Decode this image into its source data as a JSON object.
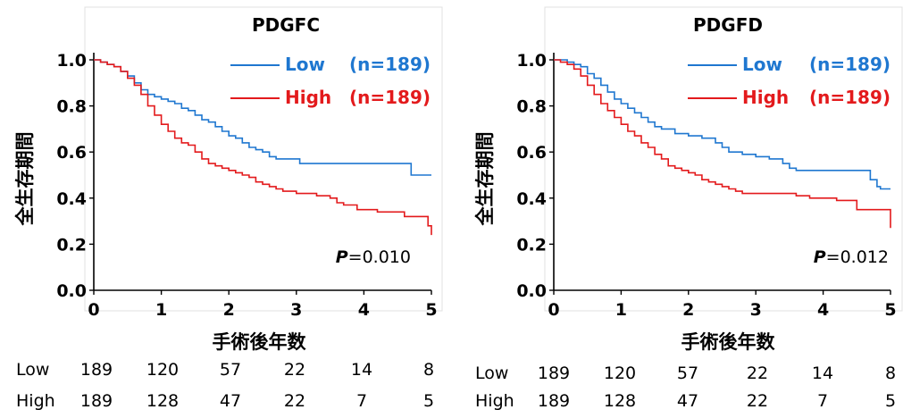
{
  "chart_data": [
    {
      "type": "line",
      "title": "PDGFC",
      "xlabel": "手術後年数",
      "ylabel": "全生存期間",
      "xlim": [
        0,
        5
      ],
      "ylim": [
        0,
        1.0
      ],
      "x_ticks": [
        "0",
        "1",
        "2",
        "3",
        "4",
        "5"
      ],
      "y_ticks": [
        "0.0",
        "0.2",
        "0.4",
        "0.6",
        "0.8",
        "1.0"
      ],
      "p_value": {
        "label": "P",
        "text": "=0.010"
      },
      "series": [
        {
          "name": "Low",
          "n_label": "(n=189)",
          "color": "#1f77d0",
          "points": [
            [
              0,
              1.0
            ],
            [
              0.1,
              0.99
            ],
            [
              0.2,
              0.98
            ],
            [
              0.3,
              0.97
            ],
            [
              0.4,
              0.95
            ],
            [
              0.5,
              0.93
            ],
            [
              0.6,
              0.9
            ],
            [
              0.7,
              0.87
            ],
            [
              0.8,
              0.85
            ],
            [
              0.9,
              0.84
            ],
            [
              1.0,
              0.83
            ],
            [
              1.1,
              0.82
            ],
            [
              1.2,
              0.81
            ],
            [
              1.3,
              0.79
            ],
            [
              1.4,
              0.78
            ],
            [
              1.5,
              0.76
            ],
            [
              1.6,
              0.74
            ],
            [
              1.7,
              0.73
            ],
            [
              1.8,
              0.71
            ],
            [
              1.9,
              0.69
            ],
            [
              2.0,
              0.67
            ],
            [
              2.1,
              0.66
            ],
            [
              2.2,
              0.64
            ],
            [
              2.3,
              0.62
            ],
            [
              2.4,
              0.61
            ],
            [
              2.5,
              0.6
            ],
            [
              2.6,
              0.58
            ],
            [
              2.7,
              0.57
            ],
            [
              3.0,
              0.57
            ],
            [
              3.05,
              0.55
            ],
            [
              4.0,
              0.55
            ],
            [
              4.7,
              0.55
            ],
            [
              4.7,
              0.5
            ],
            [
              5.0,
              0.5
            ]
          ]
        },
        {
          "name": "High",
          "n_label": "(n=189)",
          "color": "#e31a1c",
          "points": [
            [
              0,
              1.0
            ],
            [
              0.1,
              0.99
            ],
            [
              0.2,
              0.98
            ],
            [
              0.3,
              0.97
            ],
            [
              0.4,
              0.95
            ],
            [
              0.5,
              0.92
            ],
            [
              0.6,
              0.89
            ],
            [
              0.7,
              0.85
            ],
            [
              0.8,
              0.8
            ],
            [
              0.9,
              0.76
            ],
            [
              1.0,
              0.72
            ],
            [
              1.1,
              0.69
            ],
            [
              1.2,
              0.66
            ],
            [
              1.3,
              0.64
            ],
            [
              1.4,
              0.63
            ],
            [
              1.5,
              0.6
            ],
            [
              1.6,
              0.57
            ],
            [
              1.7,
              0.55
            ],
            [
              1.8,
              0.54
            ],
            [
              1.9,
              0.53
            ],
            [
              2.0,
              0.52
            ],
            [
              2.1,
              0.51
            ],
            [
              2.2,
              0.5
            ],
            [
              2.3,
              0.49
            ],
            [
              2.4,
              0.47
            ],
            [
              2.5,
              0.46
            ],
            [
              2.6,
              0.45
            ],
            [
              2.7,
              0.44
            ],
            [
              2.8,
              0.43
            ],
            [
              3.0,
              0.42
            ],
            [
              3.3,
              0.41
            ],
            [
              3.5,
              0.4
            ],
            [
              3.6,
              0.38
            ],
            [
              3.7,
              0.37
            ],
            [
              3.9,
              0.35
            ],
            [
              4.0,
              0.35
            ],
            [
              4.2,
              0.34
            ],
            [
              4.3,
              0.34
            ],
            [
              4.6,
              0.32
            ],
            [
              4.9,
              0.32
            ],
            [
              4.95,
              0.28
            ],
            [
              5.0,
              0.24
            ]
          ]
        }
      ],
      "risk_table": {
        "rows": [
          {
            "label": "Low",
            "values": [
              "189",
              "120",
              "57",
              "22",
              "14",
              "8"
            ]
          },
          {
            "label": "High",
            "values": [
              "189",
              "128",
              "47",
              "22",
              "7",
              "5"
            ]
          }
        ]
      }
    },
    {
      "type": "line",
      "title": "PDGFD",
      "xlabel": "手術後年数",
      "ylabel": "全生存期間",
      "xlim": [
        0,
        5
      ],
      "ylim": [
        0,
        1.0
      ],
      "x_ticks": [
        "0",
        "1",
        "2",
        "3",
        "4",
        "5"
      ],
      "y_ticks": [
        "0.0",
        "0.2",
        "0.4",
        "0.6",
        "0.8",
        "1.0"
      ],
      "p_value": {
        "label": "P",
        "text": "=0.012"
      },
      "series": [
        {
          "name": "Low",
          "n_label": "(n=189)",
          "color": "#1f77d0",
          "points": [
            [
              0,
              1.0
            ],
            [
              0.1,
              1.0
            ],
            [
              0.2,
              0.99
            ],
            [
              0.3,
              0.98
            ],
            [
              0.4,
              0.97
            ],
            [
              0.5,
              0.94
            ],
            [
              0.6,
              0.92
            ],
            [
              0.7,
              0.89
            ],
            [
              0.8,
              0.86
            ],
            [
              0.9,
              0.83
            ],
            [
              1.0,
              0.81
            ],
            [
              1.1,
              0.79
            ],
            [
              1.2,
              0.77
            ],
            [
              1.3,
              0.75
            ],
            [
              1.4,
              0.73
            ],
            [
              1.5,
              0.71
            ],
            [
              1.6,
              0.7
            ],
            [
              1.8,
              0.68
            ],
            [
              2.0,
              0.67
            ],
            [
              2.2,
              0.66
            ],
            [
              2.4,
              0.64
            ],
            [
              2.5,
              0.62
            ],
            [
              2.6,
              0.6
            ],
            [
              2.8,
              0.59
            ],
            [
              3.0,
              0.58
            ],
            [
              3.2,
              0.57
            ],
            [
              3.4,
              0.55
            ],
            [
              3.5,
              0.53
            ],
            [
              3.6,
              0.52
            ],
            [
              4.0,
              0.52
            ],
            [
              4.6,
              0.52
            ],
            [
              4.7,
              0.48
            ],
            [
              4.8,
              0.45
            ],
            [
              4.85,
              0.44
            ],
            [
              5.0,
              0.44
            ]
          ]
        },
        {
          "name": "High",
          "n_label": "(n=189)",
          "color": "#e31a1c",
          "points": [
            [
              0,
              1.0
            ],
            [
              0.1,
              0.99
            ],
            [
              0.2,
              0.98
            ],
            [
              0.3,
              0.96
            ],
            [
              0.4,
              0.93
            ],
            [
              0.5,
              0.89
            ],
            [
              0.6,
              0.85
            ],
            [
              0.7,
              0.81
            ],
            [
              0.8,
              0.78
            ],
            [
              0.9,
              0.75
            ],
            [
              1.0,
              0.72
            ],
            [
              1.1,
              0.69
            ],
            [
              1.2,
              0.67
            ],
            [
              1.3,
              0.64
            ],
            [
              1.4,
              0.62
            ],
            [
              1.5,
              0.59
            ],
            [
              1.6,
              0.57
            ],
            [
              1.7,
              0.54
            ],
            [
              1.8,
              0.53
            ],
            [
              1.9,
              0.52
            ],
            [
              2.0,
              0.51
            ],
            [
              2.1,
              0.5
            ],
            [
              2.2,
              0.48
            ],
            [
              2.3,
              0.47
            ],
            [
              2.4,
              0.46
            ],
            [
              2.5,
              0.45
            ],
            [
              2.6,
              0.44
            ],
            [
              2.7,
              0.43
            ],
            [
              2.8,
              0.42
            ],
            [
              3.0,
              0.42
            ],
            [
              3.5,
              0.42
            ],
            [
              3.6,
              0.41
            ],
            [
              3.8,
              0.4
            ],
            [
              4.0,
              0.4
            ],
            [
              4.2,
              0.39
            ],
            [
              4.5,
              0.39
            ],
            [
              4.5,
              0.35
            ],
            [
              4.9,
              0.35
            ],
            [
              5.0,
              0.27
            ]
          ]
        }
      ],
      "risk_table": {
        "rows": [
          {
            "label": "Low",
            "values": [
              "189",
              "120",
              "57",
              "22",
              "14",
              "8"
            ]
          },
          {
            "label": "High",
            "values": [
              "189",
              "128",
              "47",
              "22",
              "7",
              "5"
            ]
          }
        ]
      }
    }
  ]
}
